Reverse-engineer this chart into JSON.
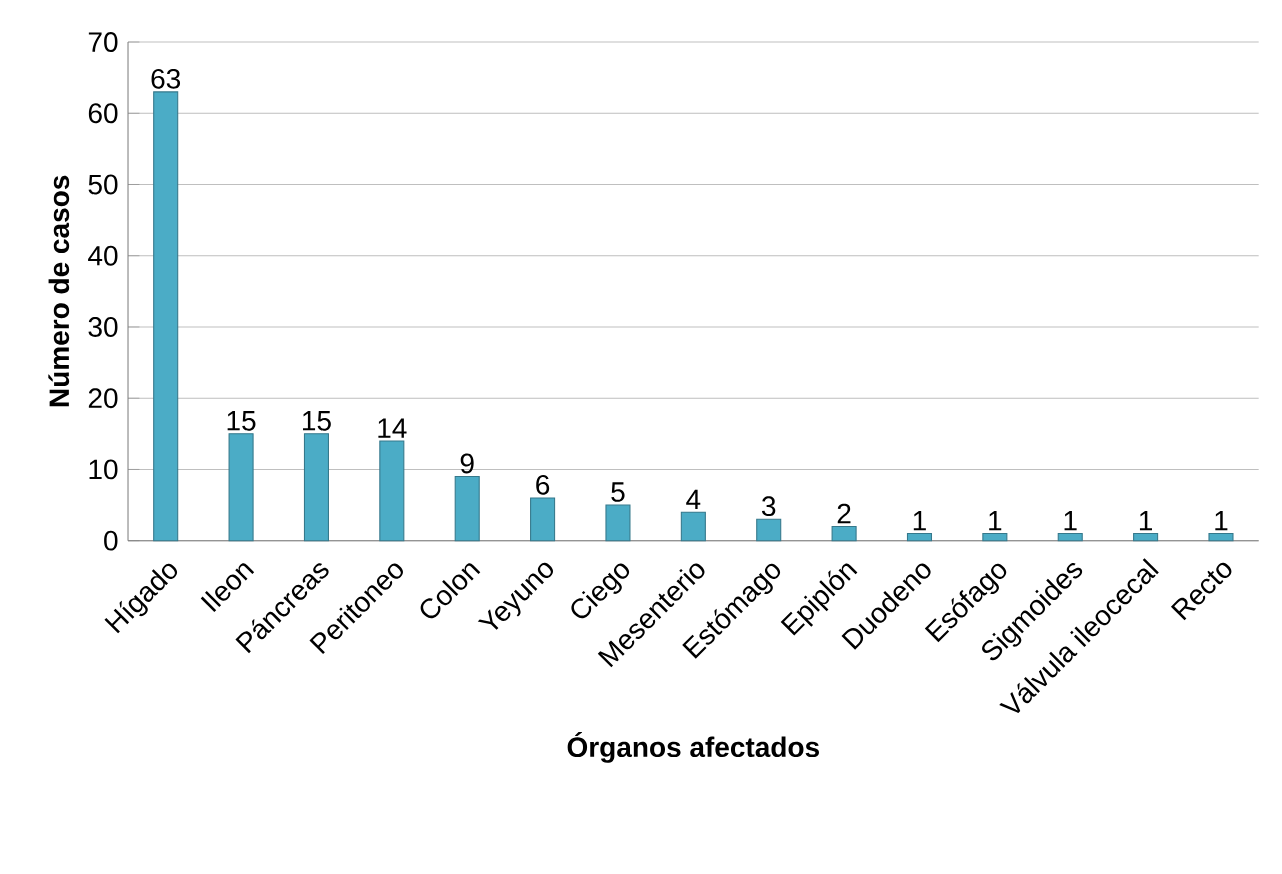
{
  "chart_data": {
    "type": "bar",
    "xlabel": "Órganos afectados",
    "ylabel": "Número de casos",
    "categories": [
      "Hígado",
      "Ileon",
      "Páncreas",
      "Peritoneo",
      "Colon",
      "Yeyuno",
      "Ciego",
      "Mesenterio",
      "Estómago",
      "Epiplón",
      "Duodeno",
      "Esófago",
      "Sigmoides",
      "Válvula ileocecal",
      "Recto"
    ],
    "values": [
      63,
      15,
      15,
      14,
      9,
      6,
      5,
      4,
      3,
      2,
      1,
      1,
      1,
      1,
      1
    ],
    "color": "#4bacc6",
    "ylim": [
      0,
      70
    ],
    "yticks": [
      0,
      10,
      20,
      30,
      40,
      50,
      60,
      70
    ],
    "grid": "y",
    "data_labels": true
  }
}
